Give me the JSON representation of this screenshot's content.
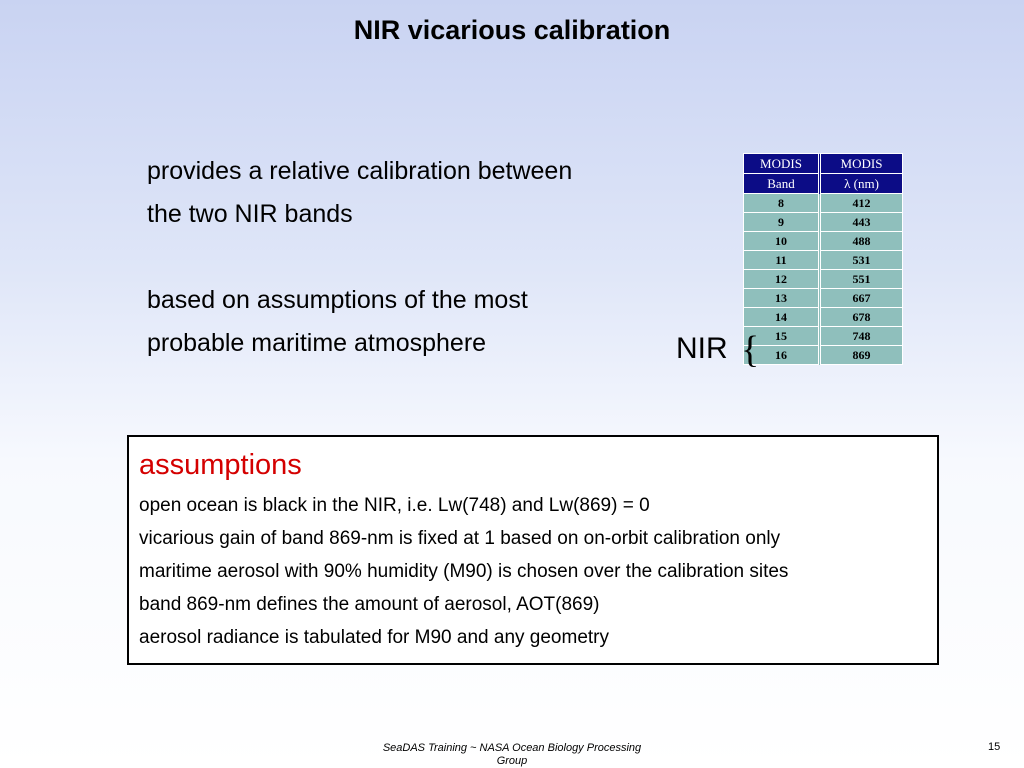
{
  "title": "NIR vicarious calibration",
  "bullets": [
    {
      "line1": "provides a relative calibration between",
      "line2": "the two NIR bands"
    },
    {
      "line1": "based on assumptions of the most",
      "line2": "probable maritime atmosphere"
    }
  ],
  "nir_label": "NIR",
  "nir_brace": "{",
  "table": {
    "headers": [
      {
        "line1": "MODIS",
        "line2": "Band"
      },
      {
        "line1": "MODIS",
        "line2": "λ (nm)"
      }
    ],
    "rows": [
      [
        "8",
        "412"
      ],
      [
        "9",
        "443"
      ],
      [
        "10",
        "488"
      ],
      [
        "11",
        "531"
      ],
      [
        "12",
        "551"
      ],
      [
        "13",
        "667"
      ],
      [
        "14",
        "678"
      ],
      [
        "15",
        "748"
      ],
      [
        "16",
        "869"
      ]
    ],
    "header_color": "#0c0c86",
    "cell_color": "#8fbfbc"
  },
  "assumptions": {
    "heading": "assumptions",
    "heading_color": "#d40000",
    "items": [
      "open ocean is black in the NIR, i.e. Lw(748) and Lw(869) = 0",
      "vicarious gain of band 869-nm is fixed at 1 based on on-orbit calibration only",
      "maritime aerosol with 90% humidity (M90) is chosen over the calibration sites",
      "band 869-nm defines the amount of aerosol, AOT(869)",
      "aerosol radiance is tabulated for M90 and any geometry"
    ]
  },
  "footer": {
    "line1": "SeaDAS Training ~ NASA Ocean Biology Processing",
    "line2": "Group"
  },
  "page_number": "15"
}
